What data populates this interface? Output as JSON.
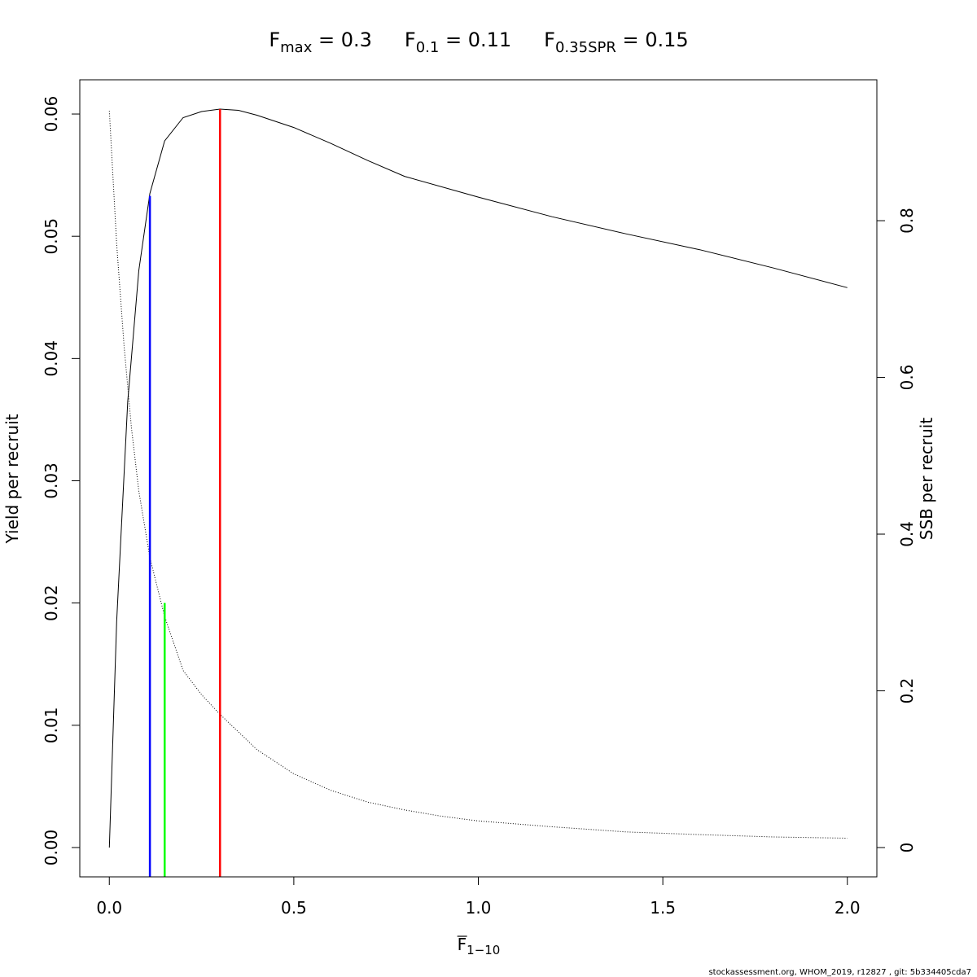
{
  "chart_data": {
    "type": "line",
    "title_parts": [
      {
        "base": "F",
        "sub": "max",
        "rest": " = 0.3"
      },
      {
        "base": "F",
        "sub": "0.1",
        "rest": " = 0.11"
      },
      {
        "base": "F",
        "sub": "0.35SPR",
        "rest": " = 0.15"
      }
    ],
    "xlabel": {
      "base": "F",
      "sub": "1−10"
    },
    "ylabel": "Yield per recruit",
    "y2label": "SSB per recruit",
    "xlim": [
      -0.08,
      2.08
    ],
    "ylim": [
      -0.0024,
      0.0628
    ],
    "y2lim": [
      -0.0374,
      0.9798
    ],
    "xticks": [
      0.0,
      0.5,
      1.0,
      1.5,
      2.0
    ],
    "xtick_labels": [
      "0.0",
      "0.5",
      "1.0",
      "1.5",
      "2.0"
    ],
    "yticks": [
      0.0,
      0.01,
      0.02,
      0.03,
      0.04,
      0.05,
      0.06
    ],
    "ytick_labels": [
      "0.00",
      "0.01",
      "0.02",
      "0.03",
      "0.04",
      "0.05",
      "0.06"
    ],
    "y2ticks": [
      0,
      0.2,
      0.4,
      0.6,
      0.8
    ],
    "y2tick_labels": [
      "0",
      "0.2",
      "0.4",
      "0.6",
      "0.8"
    ],
    "yield_curve": {
      "name": "Yield per recruit",
      "x": [
        0,
        0.02,
        0.05,
        0.08,
        0.11,
        0.15,
        0.2,
        0.25,
        0.3,
        0.35,
        0.4,
        0.5,
        0.6,
        0.7,
        0.8,
        1.0,
        1.2,
        1.4,
        1.6,
        1.8,
        2.0
      ],
      "y": [
        0.0,
        0.0185,
        0.0365,
        0.0472,
        0.0535,
        0.0578,
        0.0597,
        0.0602,
        0.0604,
        0.0603,
        0.0599,
        0.0589,
        0.0576,
        0.0562,
        0.0549,
        0.0532,
        0.0516,
        0.0502,
        0.0489,
        0.0474,
        0.0458
      ]
    },
    "ssb_curve": {
      "name": "SSB per recruit",
      "x": [
        0,
        0.02,
        0.04,
        0.06,
        0.08,
        0.11,
        0.15,
        0.2,
        0.25,
        0.3,
        0.4,
        0.5,
        0.6,
        0.7,
        0.8,
        0.9,
        1.0,
        1.2,
        1.4,
        1.6,
        1.8,
        2.0
      ],
      "y": [
        0.94,
        0.77,
        0.64,
        0.535,
        0.455,
        0.37,
        0.295,
        0.226,
        0.195,
        0.17,
        0.125,
        0.094,
        0.073,
        0.058,
        0.048,
        0.04,
        0.034,
        0.0265,
        0.02,
        0.0165,
        0.0135,
        0.012
      ]
    },
    "ref_lines": [
      {
        "label": "Fmax",
        "x": 0.3,
        "y_top": 0.0604,
        "color": "#ff0000"
      },
      {
        "label": "F0.1",
        "x": 0.11,
        "y_top": 0.0533,
        "color": "#0000ff"
      },
      {
        "label": "F0.35SPR",
        "x": 0.15,
        "y_top": 0.02,
        "color": "#00ff00"
      }
    ],
    "grid": false,
    "legend": "none"
  },
  "footer": "stockassessment.org, WHOM_2019, r12827 , git: 5b334405cda7"
}
